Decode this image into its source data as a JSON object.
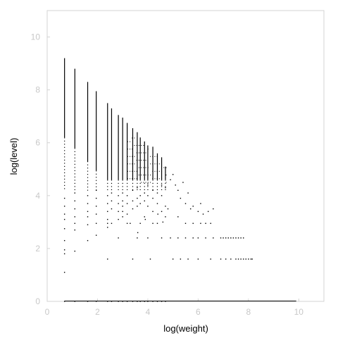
{
  "chart_data": {
    "type": "scatter",
    "title": "",
    "xlabel": "log(weight)",
    "ylabel": "log(level)",
    "xlim": [
      0,
      11
    ],
    "ylim": [
      0,
      11
    ],
    "xticks": [
      "0",
      "2",
      "4",
      "6",
      "8",
      "10"
    ],
    "yticks": [
      "0",
      "2",
      "4",
      "6",
      "8",
      "10"
    ],
    "xtick_values": [
      0,
      2,
      4,
      6,
      8,
      10
    ],
    "ytick_values": [
      0,
      2,
      4,
      6,
      8,
      10
    ],
    "grid": false,
    "legend": "none",
    "colors": {
      "marks": "#000000",
      "frame": "#d3d3d3",
      "tick_labels": "#c8c8c8"
    },
    "columns": [
      {
        "x": 0.69,
        "top": 9.2,
        "points": [
          0,
          1.1,
          1.8,
          1.95,
          2.3,
          2.75,
          3.1,
          3.3,
          3.6,
          3.9
        ]
      },
      {
        "x": 1.1,
        "top": 8.8,
        "points": [
          0,
          1.9,
          2.7,
          2.95,
          3.2,
          3.5,
          3.8,
          4.1
        ]
      },
      {
        "x": 1.61,
        "top": 8.3,
        "points": [
          0,
          2.3,
          2.9,
          3.2,
          3.4,
          3.7,
          4.0
        ]
      },
      {
        "x": 1.95,
        "top": 7.95,
        "points": [
          0,
          2.5,
          2.95,
          3.3,
          3.6,
          3.9,
          4.2
        ]
      },
      {
        "x": 2.4,
        "top": 7.5,
        "points": [
          0,
          1.6,
          2.8,
          2.95,
          3.1,
          3.4,
          3.7,
          4.0
        ]
      },
      {
        "x": 2.56,
        "top": 7.3,
        "points": [
          0,
          2.95,
          3.5,
          3.8,
          4.1
        ]
      },
      {
        "x": 2.83,
        "top": 7.05,
        "points": [
          0,
          2.4,
          3.1,
          3.4,
          3.7,
          4.0
        ]
      },
      {
        "x": 3.0,
        "top": 6.95,
        "points": [
          0,
          3.4,
          3.6,
          3.8,
          4.1
        ]
      },
      {
        "x": 3.18,
        "top": 6.75,
        "points": [
          0,
          2.95,
          3.3,
          3.7,
          4.0
        ]
      },
      {
        "x": 3.4,
        "top": 6.55,
        "points": [
          0,
          1.6,
          3.5,
          3.8,
          4.2
        ]
      },
      {
        "x": 3.58,
        "top": 6.4,
        "points": [
          0,
          2.4,
          3.6,
          3.9,
          4.3
        ]
      },
      {
        "x": 3.7,
        "top": 6.2,
        "points": [
          0,
          2.95,
          3.7,
          4.0
        ]
      },
      {
        "x": 3.87,
        "top": 6.05,
        "points": [
          0,
          3.2,
          3.8,
          4.1
        ]
      },
      {
        "x": 4.0,
        "top": 5.9,
        "points": [
          0,
          2.4,
          3.6,
          4.0,
          4.4
        ]
      },
      {
        "x": 4.2,
        "top": 5.85,
        "points": [
          0,
          3.4,
          3.9,
          4.2
        ]
      },
      {
        "x": 4.38,
        "top": 5.6,
        "points": [
          0,
          2.95,
          3.7,
          4.1
        ]
      },
      {
        "x": 4.55,
        "top": 5.45,
        "points": [
          0,
          2.4,
          3.4,
          4.0,
          4.4
        ]
      },
      {
        "x": 4.7,
        "top": 5.1,
        "points": [
          0,
          3.2,
          3.6,
          4.3
        ]
      }
    ],
    "scatter": [
      {
        "x": 4.9,
        "y": 4.6
      },
      {
        "x": 5.0,
        "y": 4.8
      },
      {
        "x": 5.1,
        "y": 4.4
      },
      {
        "x": 5.2,
        "y": 4.2
      },
      {
        "x": 5.3,
        "y": 3.9
      },
      {
        "x": 5.4,
        "y": 4.5
      },
      {
        "x": 5.5,
        "y": 3.7
      },
      {
        "x": 5.6,
        "y": 4.1
      },
      {
        "x": 5.7,
        "y": 3.5
      },
      {
        "x": 5.8,
        "y": 3.6
      },
      {
        "x": 6.0,
        "y": 3.4
      },
      {
        "x": 6.1,
        "y": 3.7
      },
      {
        "x": 6.2,
        "y": 3.3
      },
      {
        "x": 6.4,
        "y": 3.4
      },
      {
        "x": 6.6,
        "y": 3.5
      },
      {
        "x": 5.2,
        "y": 3.2
      },
      {
        "x": 5.5,
        "y": 2.95
      },
      {
        "x": 5.8,
        "y": 2.95
      },
      {
        "x": 6.1,
        "y": 2.95
      },
      {
        "x": 6.3,
        "y": 2.95
      },
      {
        "x": 6.5,
        "y": 2.95
      },
      {
        "x": 4.9,
        "y": 2.4
      },
      {
        "x": 5.2,
        "y": 2.4
      },
      {
        "x": 5.5,
        "y": 2.4
      },
      {
        "x": 5.8,
        "y": 2.4
      },
      {
        "x": 6.0,
        "y": 2.4
      },
      {
        "x": 6.3,
        "y": 2.4
      },
      {
        "x": 6.6,
        "y": 2.4
      },
      {
        "x": 6.9,
        "y": 2.4
      },
      {
        "x": 7.0,
        "y": 2.4
      },
      {
        "x": 7.1,
        "y": 2.4
      },
      {
        "x": 7.2,
        "y": 2.4
      },
      {
        "x": 7.3,
        "y": 2.4
      },
      {
        "x": 7.4,
        "y": 2.4
      },
      {
        "x": 7.5,
        "y": 2.4
      },
      {
        "x": 7.6,
        "y": 2.4
      },
      {
        "x": 7.7,
        "y": 2.4
      },
      {
        "x": 7.8,
        "y": 2.4
      },
      {
        "x": 4.1,
        "y": 1.6
      },
      {
        "x": 5.0,
        "y": 1.6
      },
      {
        "x": 5.3,
        "y": 1.6
      },
      {
        "x": 5.6,
        "y": 1.6
      },
      {
        "x": 6.0,
        "y": 1.6
      },
      {
        "x": 6.5,
        "y": 1.6
      },
      {
        "x": 6.9,
        "y": 1.6
      },
      {
        "x": 7.1,
        "y": 1.6
      },
      {
        "x": 7.3,
        "y": 1.6
      },
      {
        "x": 7.5,
        "y": 1.6
      },
      {
        "x": 7.6,
        "y": 1.6
      },
      {
        "x": 7.7,
        "y": 1.6
      },
      {
        "x": 7.8,
        "y": 1.6
      },
      {
        "x": 7.9,
        "y": 1.6
      },
      {
        "x": 8.0,
        "y": 1.6
      },
      {
        "x": 8.1,
        "y": 1.6
      },
      {
        "x": 8.15,
        "y": 1.6
      },
      {
        "x": 3.0,
        "y": 3.2
      },
      {
        "x": 3.3,
        "y": 2.95
      },
      {
        "x": 3.6,
        "y": 2.6
      },
      {
        "x": 3.9,
        "y": 3.1
      },
      {
        "x": 4.2,
        "y": 2.95
      },
      {
        "x": 4.4,
        "y": 3.3
      },
      {
        "x": 4.6,
        "y": 3.0
      },
      {
        "x": 4.8,
        "y": 3.5
      }
    ],
    "baseline": {
      "y": 0,
      "x_from": 0.69,
      "x_to": 9.9
    }
  }
}
